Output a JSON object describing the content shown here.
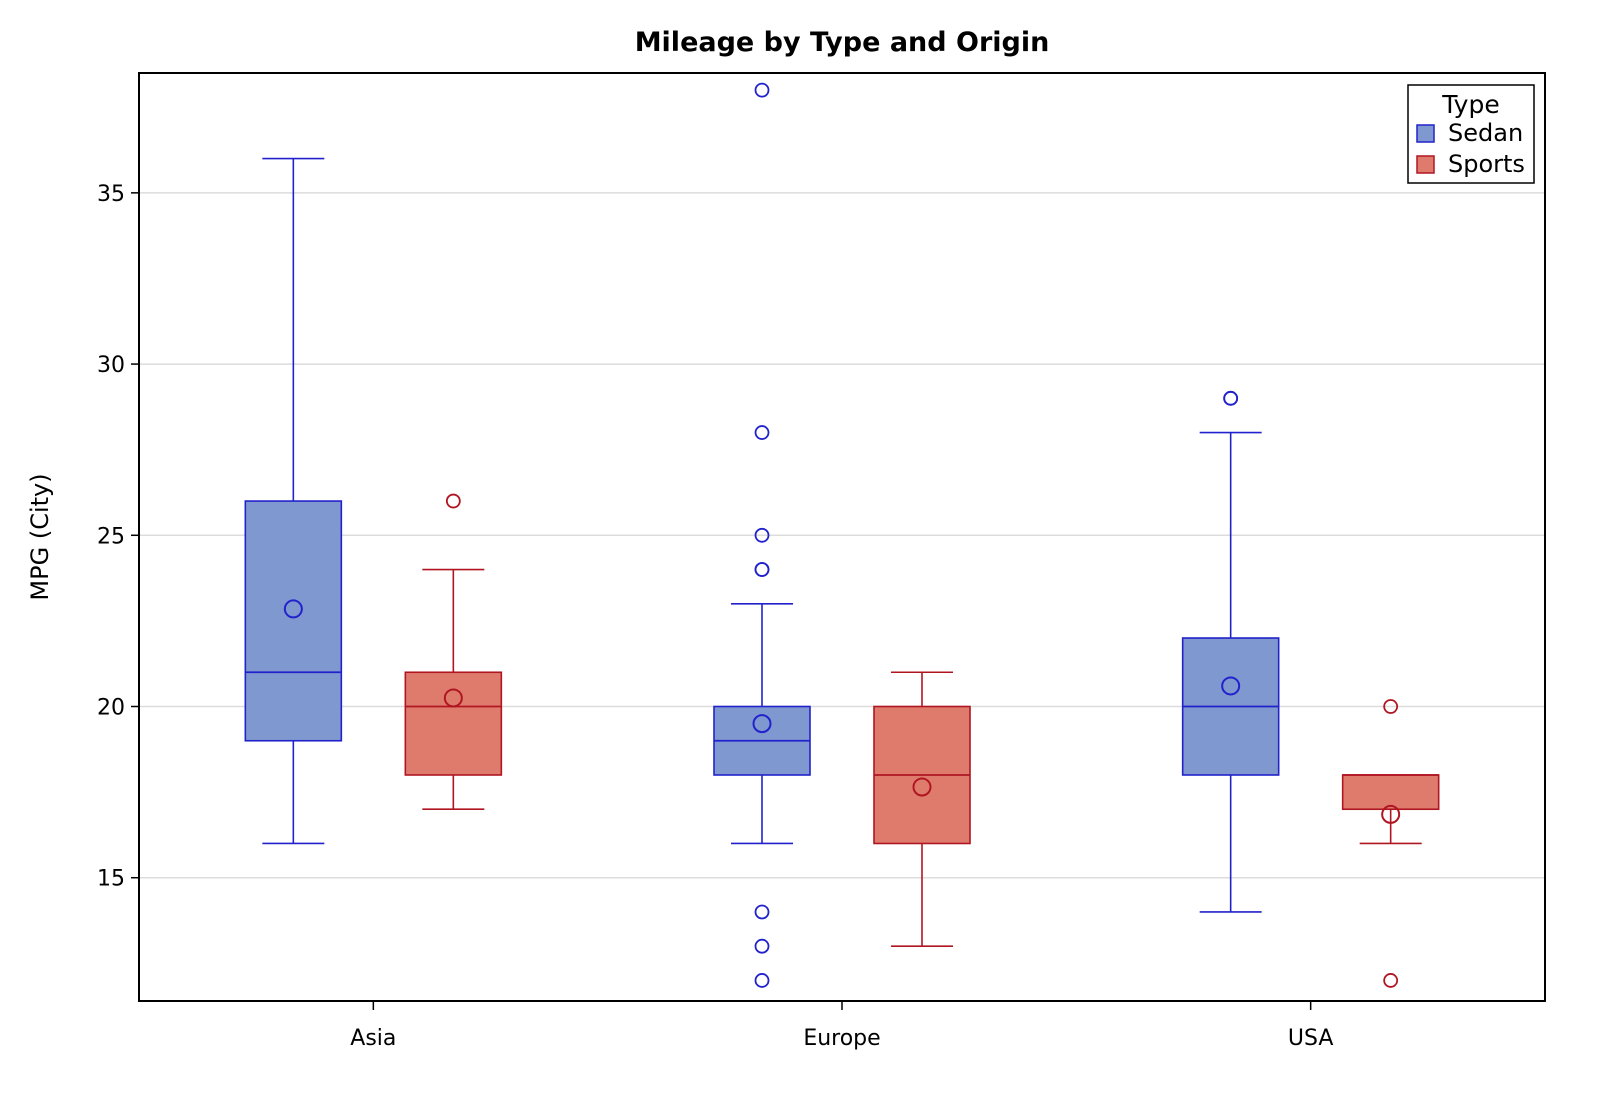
{
  "chart_data": {
    "type": "box",
    "title": "Mileage by Type and Origin",
    "xlabel": "",
    "ylabel": "MPG (City)",
    "categories": [
      "Asia",
      "Europe",
      "USA"
    ],
    "ylim": [
      11.4,
      38.5
    ],
    "yticks": [
      15,
      20,
      25,
      30,
      35
    ],
    "grid": "horizontal",
    "legend": {
      "title": "Type",
      "position": "top-right"
    },
    "series": [
      {
        "name": "Sedan",
        "color": "#7f98d0",
        "stroke": "#2222cc",
        "boxes": [
          {
            "category": "Asia",
            "whisker_low": 16,
            "q1": 19,
            "median": 21,
            "q3": 26,
            "whisker_high": 36,
            "mean": 22.85,
            "outliers": []
          },
          {
            "category": "Europe",
            "whisker_low": 16,
            "q1": 18,
            "median": 19,
            "q3": 20,
            "whisker_high": 23,
            "mean": 19.5,
            "outliers": [
              12,
              13,
              14,
              24,
              24,
              25,
              28,
              38
            ]
          },
          {
            "category": "USA",
            "whisker_low": 14,
            "q1": 18,
            "median": 20,
            "q3": 22,
            "whisker_high": 28,
            "mean": 20.6,
            "outliers": [
              29,
              29
            ]
          }
        ]
      },
      {
        "name": "Sports",
        "color": "#df7b6d",
        "stroke": "#b01622",
        "boxes": [
          {
            "category": "Asia",
            "whisker_low": 17,
            "q1": 18,
            "median": 20,
            "q3": 21,
            "whisker_high": 24,
            "mean": 20.25,
            "outliers": [
              26
            ]
          },
          {
            "category": "Europe",
            "whisker_low": 13,
            "q1": 16,
            "median": 18,
            "q3": 20,
            "whisker_high": 21,
            "mean": 17.65,
            "outliers": []
          },
          {
            "category": "USA",
            "whisker_low": 16,
            "q1": 17,
            "median": 18,
            "q3": 18,
            "whisker_high": 18,
            "mean": 16.85,
            "outliers": [
              12,
              20
            ]
          }
        ]
      }
    ]
  }
}
